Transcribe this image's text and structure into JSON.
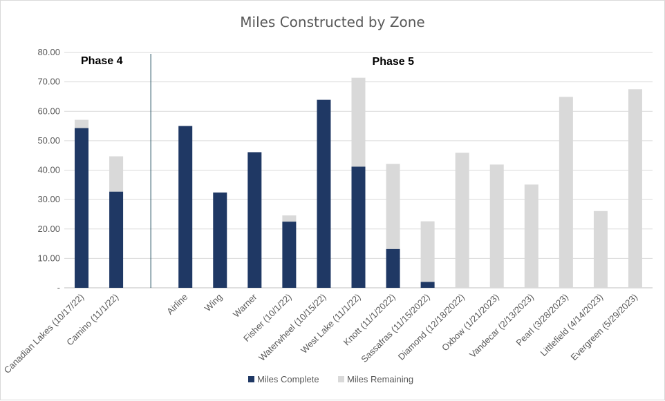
{
  "chart_data": {
    "type": "bar",
    "stacked": true,
    "title": "Miles Constructed by Zone",
    "categories": [
      "Canadian Lakes (10/17/22)",
      "Camino (11/1/22)",
      "",
      "Airline",
      "Wing",
      "Warner",
      "Fisher (10/1/22)",
      "Waterwheel (10/15/22)",
      "West Lake (11/1/22)",
      "Knott (11/1/2022)",
      "Sassafras (11/15/2022)",
      "Diamond (12/18/2022)",
      "Oxbow (1/21/2023)",
      "Vandecar (2/13/2023)",
      "Pearl (3/28/2023)",
      "Littlefield (4/14/2023)",
      "Evergreen (5/29/2023)"
    ],
    "series": [
      {
        "name": "Miles Complete",
        "color": "#1f3864",
        "values": [
          54.3,
          32.7,
          0,
          55.0,
          32.4,
          46.1,
          22.5,
          63.9,
          41.2,
          13.2,
          2.0,
          0,
          0,
          0,
          0,
          0,
          0
        ]
      },
      {
        "name": "Miles Remaining",
        "color": "#d9d9d9",
        "values": [
          2.8,
          12.0,
          0,
          0,
          0,
          0,
          2.1,
          0,
          30.2,
          28.9,
          20.6,
          45.9,
          41.9,
          35.1,
          64.9,
          26.1,
          67.5
        ]
      }
    ],
    "ylim": [
      0,
      80
    ],
    "yticks": [
      {
        "value": 0,
        "label": "-"
      },
      {
        "value": 10,
        "label": "10.00"
      },
      {
        "value": 20,
        "label": "20.00"
      },
      {
        "value": 30,
        "label": "30.00"
      },
      {
        "value": 40,
        "label": "40.00"
      },
      {
        "value": 50,
        "label": "50.00"
      },
      {
        "value": 60,
        "label": "60.00"
      },
      {
        "value": 70,
        "label": "70.00"
      },
      {
        "value": 80,
        "label": "80.00"
      }
    ],
    "grid": true,
    "legend": "bottom",
    "annotations": [
      {
        "text": "Phase 4"
      },
      {
        "text": "Phase 5"
      }
    ],
    "divider_after_category": 1
  }
}
